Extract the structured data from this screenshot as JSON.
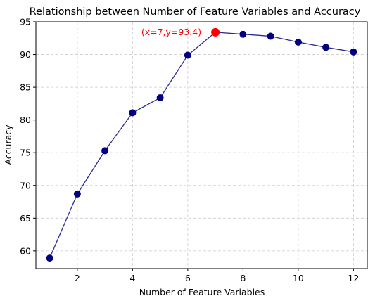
{
  "chart_data": {
    "type": "line",
    "title": "Relationship between Number of Feature Variables and Accuracy",
    "xlabel": "Number of Feature Variables",
    "ylabel": "Accuracy",
    "xlim": [
      0.5,
      12.5
    ],
    "ylim": [
      57.3,
      95
    ],
    "xticks": [
      2,
      4,
      6,
      8,
      10,
      12
    ],
    "yticks": [
      60,
      65,
      70,
      75,
      80,
      85,
      90,
      95
    ],
    "grid": true,
    "series": [
      {
        "x": [
          1,
          2,
          3,
          4,
          5,
          6,
          7,
          8,
          9,
          10,
          11,
          12
        ],
        "y": [
          58.9,
          68.7,
          75.3,
          81.1,
          83.4,
          89.9,
          93.4,
          93.1,
          92.8,
          91.9,
          91.1,
          90.4
        ],
        "line_color": "#2b2b99",
        "marker_color": "#000080"
      }
    ],
    "highlight": {
      "x": 7,
      "y": 93.4,
      "color": "#ff0000",
      "label": "(x=7,y=93.4)"
    }
  }
}
